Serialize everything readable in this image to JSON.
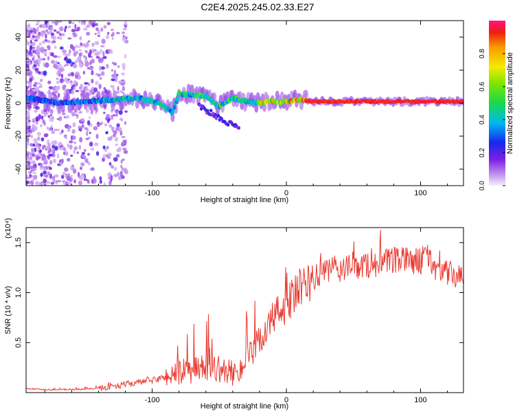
{
  "title": "C2E4.2025.245.02.33.E27",
  "chart_data": [
    {
      "type": "heatmap",
      "name": "spectrogram",
      "xlabel": "Height of straight line (km)",
      "ylabel": "Frequency (Hz)",
      "xlim": [
        -194,
        132
      ],
      "ylim": [
        -50,
        50
      ],
      "xticks": [
        -100,
        0,
        100
      ],
      "xtick_labels": [
        "-100",
        "0",
        "100"
      ],
      "yticks": [
        -40,
        -20,
        0,
        20,
        40
      ],
      "ytick_labels": [
        "-40",
        "-20",
        "0",
        "20",
        "40"
      ],
      "ridge": {
        "description_points_x": [
          -190,
          -170,
          -150,
          -130,
          -110,
          -95,
          -85,
          -80,
          -70,
          -60,
          -50,
          -40,
          -30,
          -20,
          -10,
          0,
          10,
          20,
          60,
          100,
          132
        ],
        "description_points_y": [
          3,
          0,
          1,
          2,
          3,
          0,
          -6,
          6,
          5,
          4,
          -2,
          3,
          1,
          0,
          1,
          1,
          2,
          1,
          1,
          1,
          1
        ]
      },
      "colorbar": {
        "label": "Normalized spectral amplitude",
        "range": [
          0,
          1
        ],
        "ticks": [
          0.0,
          0.2,
          0.4,
          0.6,
          0.8
        ],
        "tick_labels": [
          "0.0",
          "0.2",
          "0.4",
          "0.6",
          "0.8"
        ]
      }
    },
    {
      "type": "line",
      "name": "snr",
      "xlabel": "Height of straight line (km)",
      "ylabel": "SNR (10 * v/v)",
      "multiplier": "(x10⁴)",
      "xlim": [
        -194,
        132
      ],
      "ylim": [
        0,
        1.65
      ],
      "xticks": [
        -100,
        0,
        100
      ],
      "xtick_labels": [
        "-100",
        "0",
        "100"
      ],
      "yticks": [
        0.5,
        1.0,
        1.5
      ],
      "ytick_labels": [
        "0.5",
        "1.0",
        "1.5"
      ],
      "color": "#e8392f",
      "series": [
        {
          "name": "SNR",
          "x": [
            -194,
            -180,
            -160,
            -140,
            -130,
            -120,
            -110,
            -100,
            -90,
            -80,
            -70,
            -60,
            -50,
            -45,
            -40,
            -35,
            -30,
            -25,
            -20,
            -15,
            -10,
            -5,
            0,
            5,
            10,
            15,
            20,
            25,
            30,
            40,
            50,
            60,
            70,
            80,
            90,
            100,
            105,
            110,
            120,
            132
          ],
          "y": [
            0.04,
            0.03,
            0.03,
            0.04,
            0.06,
            0.08,
            0.1,
            0.12,
            0.15,
            0.18,
            0.2,
            0.25,
            0.22,
            0.2,
            0.18,
            0.22,
            0.3,
            0.38,
            0.5,
            0.62,
            0.72,
            0.8,
            0.86,
            0.93,
            1.0,
            1.06,
            1.12,
            1.17,
            1.2,
            1.22,
            1.24,
            1.26,
            1.28,
            1.3,
            1.31,
            1.3,
            1.35,
            1.25,
            1.18,
            1.12
          ]
        }
      ]
    }
  ]
}
